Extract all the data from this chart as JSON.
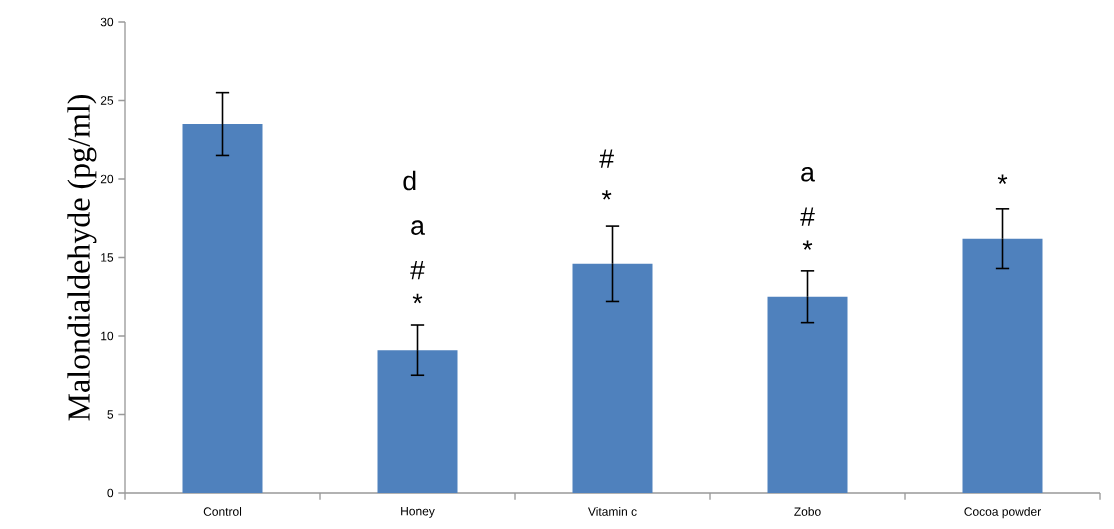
{
  "chart_data": {
    "type": "bar",
    "ylabel": "Malondialdehyde (pg/ml)",
    "categories": [
      "Control",
      "Honey",
      "Vitamin c",
      "Zobo",
      "Cocoa powder"
    ],
    "values": [
      23.5,
      9.1,
      14.6,
      12.5,
      16.2
    ],
    "errors": [
      2.0,
      1.6,
      2.4,
      1.65,
      1.9
    ],
    "color": "#4f81bd",
    "ylim": [
      0,
      30
    ],
    "yticks": [
      0,
      5,
      10,
      15,
      20,
      25,
      30
    ],
    "annotations": [
      "d",
      "a",
      "#",
      "*",
      "#",
      "*",
      "a",
      "#",
      "*",
      "*"
    ]
  }
}
